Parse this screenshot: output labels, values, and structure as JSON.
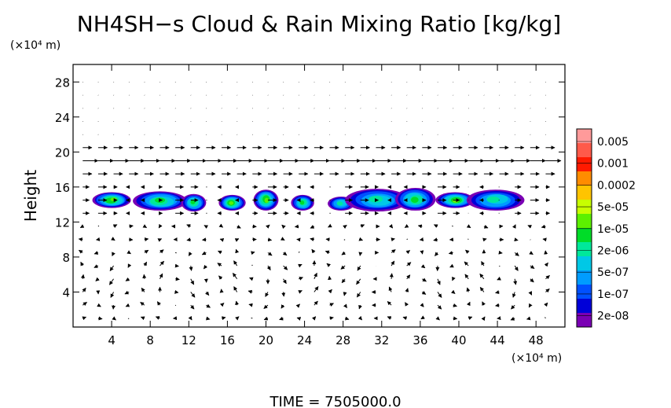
{
  "chart_data": {
    "type": "heatmap",
    "title": "NH4SH−s Cloud & Rain Mixing Ratio [kg/kg]",
    "ylabel": "Height",
    "y_unit": "(×10⁴ m)",
    "x_unit": "(×10⁴ m)",
    "xlim": [
      0,
      51
    ],
    "ylim": [
      0,
      30
    ],
    "x_ticks": [
      4,
      8,
      12,
      16,
      20,
      24,
      28,
      32,
      36,
      40,
      44,
      48
    ],
    "y_ticks": [
      4,
      8,
      12,
      16,
      20,
      24,
      28
    ],
    "colorbar": {
      "labels": [
        "0.005",
        "0.001",
        "0.0002",
        "5e-05",
        "1e-05",
        "2e-06",
        "5e-07",
        "1e-07",
        "2e-08"
      ],
      "colors": [
        "#ff9a9a",
        "#ff5a4a",
        "#ff1a00",
        "#ff8c00",
        "#ffc400",
        "#c8ff00",
        "#5cf000",
        "#00dc28",
        "#00e89a",
        "#00c8e6",
        "#009cff",
        "#0050ff",
        "#0000d8",
        "#7a00b4"
      ]
    },
    "cloud_cells": [
      {
        "x": 4.0,
        "y": 14.5,
        "rx": 2.0,
        "ry": 0.9,
        "level": 7
      },
      {
        "x": 9.0,
        "y": 14.4,
        "rx": 2.8,
        "ry": 1.1,
        "level": 6
      },
      {
        "x": 12.5,
        "y": 14.2,
        "rx": 1.3,
        "ry": 1.0,
        "level": 6
      },
      {
        "x": 16.5,
        "y": 14.2,
        "rx": 1.4,
        "ry": 0.9,
        "level": 7
      },
      {
        "x": 20.0,
        "y": 14.5,
        "rx": 1.3,
        "ry": 1.2,
        "level": 7
      },
      {
        "x": 23.8,
        "y": 14.2,
        "rx": 1.2,
        "ry": 0.9,
        "level": 6
      },
      {
        "x": 27.8,
        "y": 14.1,
        "rx": 1.4,
        "ry": 0.8,
        "level": 5
      },
      {
        "x": 31.5,
        "y": 14.5,
        "rx": 3.3,
        "ry": 1.3,
        "level": 5
      },
      {
        "x": 35.5,
        "y": 14.6,
        "rx": 2.1,
        "ry": 1.3,
        "level": 6
      },
      {
        "x": 39.6,
        "y": 14.5,
        "rx": 2.0,
        "ry": 0.9,
        "level": 7
      },
      {
        "x": 43.8,
        "y": 14.5,
        "rx": 3.0,
        "ry": 1.2,
        "level": 5
      }
    ],
    "time_label": "TIME  =  7505000.0"
  }
}
